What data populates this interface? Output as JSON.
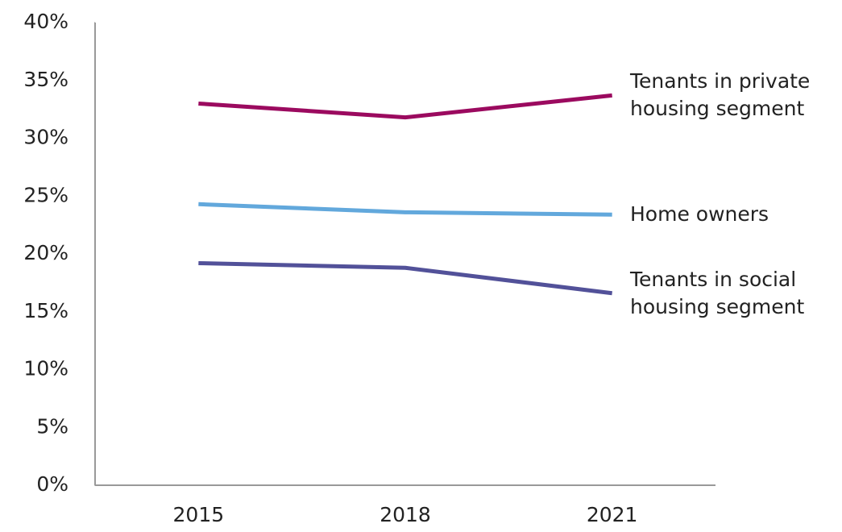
{
  "chart_data": {
    "type": "line",
    "categories": [
      "2015",
      "2018",
      "2021"
    ],
    "series": [
      {
        "name": "Tenants in private housing segment",
        "color": "#9b0a5f",
        "values": [
          33.0,
          31.8,
          33.7
        ]
      },
      {
        "name": "Home owners",
        "color": "#62a8dc",
        "values": [
          24.3,
          23.6,
          23.4
        ]
      },
      {
        "name": "Tenants in social housing segment",
        "color": "#525199",
        "values": [
          19.2,
          18.8,
          16.6
        ]
      }
    ],
    "ylim": [
      0,
      40
    ],
    "yticks": [
      {
        "value": 0,
        "label": "0%"
      },
      {
        "value": 5,
        "label": "5%"
      },
      {
        "value": 10,
        "label": "10%"
      },
      {
        "value": 15,
        "label": "15%"
      },
      {
        "value": 20,
        "label": "20%"
      },
      {
        "value": 25,
        "label": "25%"
      },
      {
        "value": 30,
        "label": "30%"
      },
      {
        "value": 35,
        "label": "35%"
      },
      {
        "value": 40,
        "label": "40%"
      }
    ],
    "grid": false
  }
}
